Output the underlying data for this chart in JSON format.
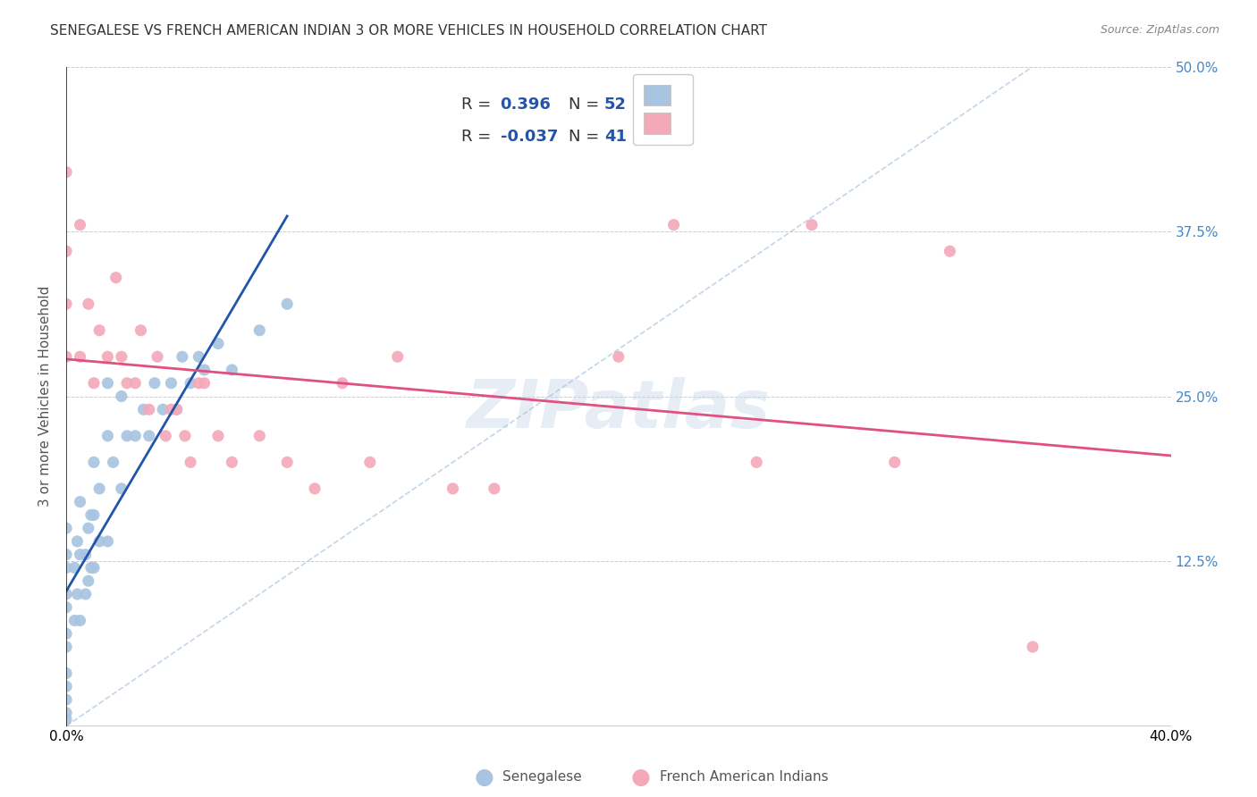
{
  "title": "SENEGALESE VS FRENCH AMERICAN INDIAN 3 OR MORE VEHICLES IN HOUSEHOLD CORRELATION CHART",
  "source": "Source: ZipAtlas.com",
  "ylabel": "3 or more Vehicles in Household",
  "xlim": [
    0.0,
    0.4
  ],
  "ylim": [
    0.0,
    0.5
  ],
  "xticks": [
    0.0,
    0.05,
    0.1,
    0.15,
    0.2,
    0.25,
    0.3,
    0.35,
    0.4
  ],
  "xticklabels": [
    "0.0%",
    "",
    "",
    "",
    "",
    "",
    "",
    "",
    "40.0%"
  ],
  "yticks": [
    0.0,
    0.125,
    0.25,
    0.375,
    0.5
  ],
  "yticklabels": [
    "",
    "12.5%",
    "25.0%",
    "37.5%",
    "50.0%"
  ],
  "color_senegalese": "#a8c4e0",
  "color_french": "#f4a8b8",
  "line_color_senegalese": "#2255aa",
  "line_color_french": "#e05080",
  "diagonal_color": "#a8c4e0",
  "watermark": "ZIPatlas",
  "background_color": "#ffffff",
  "grid_color": "#cccccc",
  "title_color": "#333333",
  "axis_label_color": "#555555",
  "tick_color_right": "#4488cc",
  "senegalese_x": [
    0.0,
    0.0,
    0.0,
    0.0,
    0.0,
    0.0,
    0.0,
    0.0,
    0.0,
    0.0,
    0.0,
    0.0,
    0.003,
    0.003,
    0.004,
    0.004,
    0.005,
    0.005,
    0.005,
    0.007,
    0.007,
    0.008,
    0.008,
    0.009,
    0.009,
    0.01,
    0.01,
    0.01,
    0.012,
    0.012,
    0.015,
    0.015,
    0.015,
    0.017,
    0.02,
    0.02,
    0.022,
    0.025,
    0.028,
    0.03,
    0.032,
    0.035,
    0.038,
    0.04,
    0.042,
    0.045,
    0.048,
    0.05,
    0.055,
    0.06,
    0.07,
    0.08
  ],
  "senegalese_y": [
    0.005,
    0.01,
    0.02,
    0.03,
    0.04,
    0.06,
    0.07,
    0.09,
    0.1,
    0.12,
    0.13,
    0.15,
    0.08,
    0.12,
    0.1,
    0.14,
    0.08,
    0.13,
    0.17,
    0.1,
    0.13,
    0.11,
    0.15,
    0.12,
    0.16,
    0.12,
    0.16,
    0.2,
    0.14,
    0.18,
    0.14,
    0.22,
    0.26,
    0.2,
    0.18,
    0.25,
    0.22,
    0.22,
    0.24,
    0.22,
    0.26,
    0.24,
    0.26,
    0.24,
    0.28,
    0.26,
    0.28,
    0.27,
    0.29,
    0.27,
    0.3,
    0.32
  ],
  "french_x": [
    0.0,
    0.0,
    0.0,
    0.0,
    0.005,
    0.005,
    0.008,
    0.01,
    0.012,
    0.015,
    0.018,
    0.02,
    0.022,
    0.025,
    0.027,
    0.03,
    0.033,
    0.036,
    0.038,
    0.04,
    0.043,
    0.045,
    0.048,
    0.05,
    0.055,
    0.06,
    0.07,
    0.08,
    0.09,
    0.1,
    0.11,
    0.12,
    0.14,
    0.155,
    0.2,
    0.22,
    0.25,
    0.27,
    0.3,
    0.32,
    0.35
  ],
  "french_y": [
    0.28,
    0.32,
    0.36,
    0.42,
    0.28,
    0.38,
    0.32,
    0.26,
    0.3,
    0.28,
    0.34,
    0.28,
    0.26,
    0.26,
    0.3,
    0.24,
    0.28,
    0.22,
    0.24,
    0.24,
    0.22,
    0.2,
    0.26,
    0.26,
    0.22,
    0.2,
    0.22,
    0.2,
    0.18,
    0.26,
    0.2,
    0.28,
    0.18,
    0.18,
    0.28,
    0.38,
    0.2,
    0.38,
    0.2,
    0.36,
    0.06
  ]
}
